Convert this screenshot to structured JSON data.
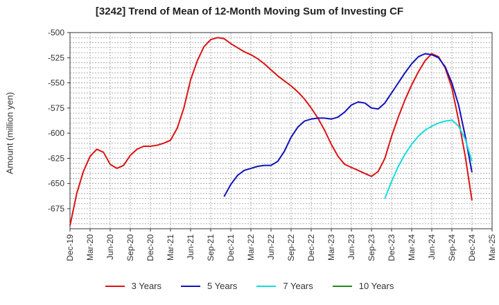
{
  "chart_data": {
    "type": "line",
    "title": "[3242]  Trend of Mean of 12-Month Moving Sum of Investing CF",
    "xlabel": "",
    "ylabel": "Amount (million yen)",
    "ylim": [
      -695,
      -500
    ],
    "yticks": [
      -500,
      -525,
      -550,
      -575,
      -600,
      -625,
      -650,
      -675
    ],
    "xlim": [
      "2019-12",
      "2025-03"
    ],
    "xticks": [
      "Dec-19",
      "Mar-20",
      "Jun-20",
      "Sep-20",
      "Dec-20",
      "Mar-21",
      "Jun-21",
      "Sep-21",
      "Dec-21",
      "Mar-22",
      "Jun-22",
      "Sep-22",
      "Dec-22",
      "Mar-23",
      "Jun-23",
      "Sep-23",
      "Dec-23",
      "Mar-24",
      "Jun-24",
      "Sep-24",
      "Dec-24",
      "Mar-25"
    ],
    "grid": true,
    "legend_position": "bottom",
    "series": [
      {
        "name": "3 Years",
        "color": "#dd1111",
        "x": [
          "2019-12",
          "2020-01",
          "2020-02",
          "2020-03",
          "2020-04",
          "2020-05",
          "2020-06",
          "2020-07",
          "2020-08",
          "2020-09",
          "2020-10",
          "2020-11",
          "2020-12",
          "2021-01",
          "2021-02",
          "2021-03",
          "2021-04",
          "2021-05",
          "2021-06",
          "2021-07",
          "2021-08",
          "2021-09",
          "2021-10",
          "2021-11",
          "2021-12",
          "2022-01",
          "2022-02",
          "2022-03",
          "2022-04",
          "2022-05",
          "2022-06",
          "2022-07",
          "2022-08",
          "2022-09",
          "2022-10",
          "2022-11",
          "2022-12",
          "2023-01",
          "2023-02",
          "2023-03",
          "2023-04",
          "2023-05",
          "2023-06",
          "2023-07",
          "2023-08",
          "2023-09",
          "2023-10",
          "2023-11",
          "2023-12",
          "2024-01",
          "2024-02",
          "2024-03",
          "2024-04",
          "2024-05",
          "2024-06",
          "2024-07",
          "2024-08",
          "2024-09",
          "2024-10",
          "2024-11",
          "2024-12"
        ],
        "values": [
          -692,
          -660,
          -638,
          -623,
          -616,
          -619,
          -631,
          -635,
          -632,
          -622,
          -616,
          -613,
          -613,
          -612,
          -610,
          -607,
          -595,
          -575,
          -547,
          -528,
          -514,
          -507,
          -505,
          -506,
          -511,
          -515,
          -519,
          -522,
          -526,
          -531,
          -537,
          -543,
          -548,
          -553,
          -559,
          -566,
          -575,
          -585,
          -597,
          -611,
          -623,
          -631,
          -634,
          -637,
          -640,
          -643,
          -638,
          -625,
          -603,
          -584,
          -567,
          -552,
          -539,
          -528,
          -521,
          -524,
          -535,
          -555,
          -587,
          -623,
          -667
        ]
      },
      {
        "name": "5 Years",
        "color": "#1111bb",
        "x": [
          "2021-11",
          "2021-12",
          "2022-01",
          "2022-02",
          "2022-03",
          "2022-04",
          "2022-05",
          "2022-06",
          "2022-07",
          "2022-08",
          "2022-09",
          "2022-10",
          "2022-11",
          "2022-12",
          "2023-01",
          "2023-02",
          "2023-03",
          "2023-04",
          "2023-05",
          "2023-06",
          "2023-07",
          "2023-08",
          "2023-09",
          "2023-10",
          "2023-11",
          "2023-12",
          "2024-01",
          "2024-02",
          "2024-03",
          "2024-04",
          "2024-05",
          "2024-06",
          "2024-07",
          "2024-08",
          "2024-09",
          "2024-10",
          "2024-11",
          "2024-12"
        ],
        "values": [
          -663,
          -651,
          -642,
          -637,
          -635,
          -633,
          -632,
          -632,
          -628,
          -618,
          -604,
          -594,
          -588,
          -586,
          -585,
          -585,
          -586,
          -584,
          -579,
          -572,
          -569,
          -570,
          -575,
          -576,
          -570,
          -560,
          -550,
          -540,
          -531,
          -524,
          -521,
          -522,
          -525,
          -534,
          -550,
          -572,
          -603,
          -639
        ]
      },
      {
        "name": "7 Years",
        "color": "#11dddd",
        "x": [
          "2023-11",
          "2023-12",
          "2024-01",
          "2024-02",
          "2024-03",
          "2024-04",
          "2024-05",
          "2024-06",
          "2024-07",
          "2024-08",
          "2024-09",
          "2024-10",
          "2024-11",
          "2024-12"
        ],
        "values": [
          -665,
          -648,
          -633,
          -621,
          -611,
          -603,
          -597,
          -593,
          -590,
          -588,
          -587,
          -593,
          -606,
          -628
        ]
      },
      {
        "name": "10 Years",
        "color": "#228822",
        "x": [],
        "values": []
      }
    ]
  }
}
